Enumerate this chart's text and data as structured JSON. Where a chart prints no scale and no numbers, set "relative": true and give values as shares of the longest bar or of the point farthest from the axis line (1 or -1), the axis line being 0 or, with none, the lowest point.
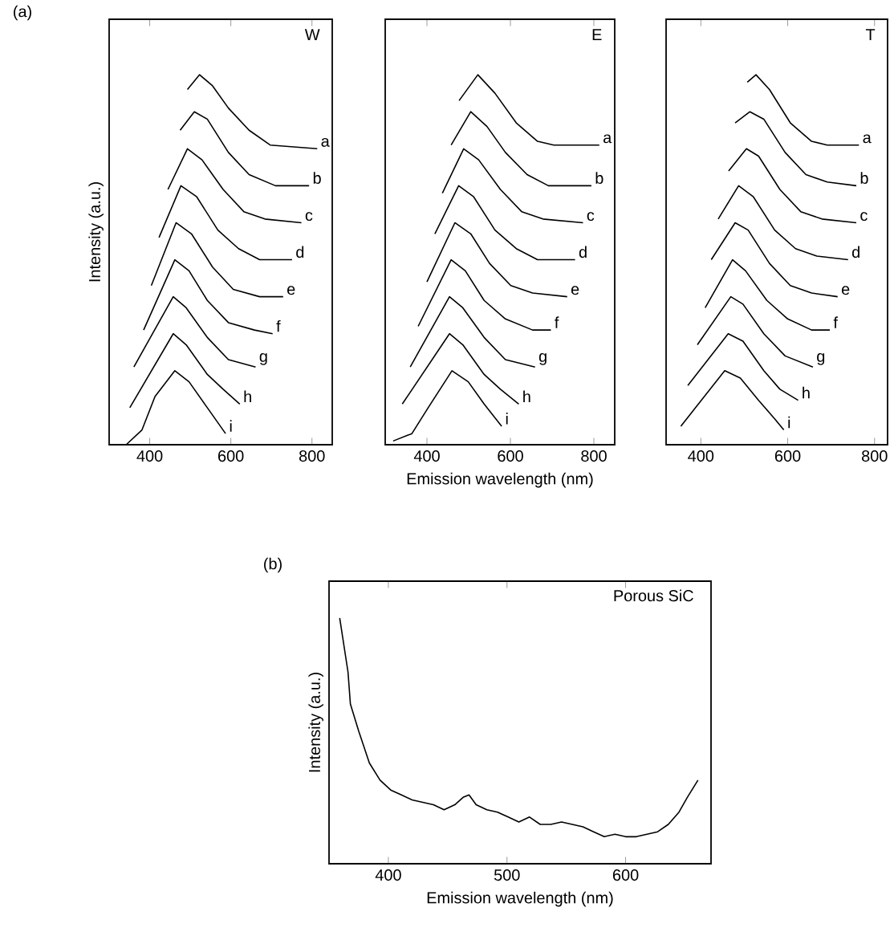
{
  "chart_data": [
    {
      "type": "line",
      "title": "W",
      "ylabel": "Intensity (a.u.)",
      "annotations": [
        "(a)"
      ],
      "relative": true,
      "xlim": [
        300,
        850
      ],
      "xticks": [
        400,
        600,
        800
      ],
      "series": [
        {
          "name": "a",
          "color": "#000000",
          "x": [
            493,
            523,
            555,
            594,
            645,
            697,
            813
          ],
          "values": [
            0.96,
            1.0,
            0.97,
            0.91,
            0.85,
            0.81,
            0.8
          ]
        },
        {
          "name": "b",
          "color": "#000000",
          "x": [
            475,
            510,
            542,
            594,
            645,
            710,
            793
          ],
          "values": [
            0.85,
            0.9,
            0.88,
            0.79,
            0.73,
            0.7,
            0.7
          ]
        },
        {
          "name": "c",
          "color": "#000000",
          "x": [
            445,
            493,
            529,
            581,
            632,
            684,
            774
          ],
          "values": [
            0.69,
            0.8,
            0.77,
            0.69,
            0.63,
            0.61,
            0.6
          ]
        },
        {
          "name": "d",
          "color": "#000000",
          "x": [
            423,
            477,
            516,
            568,
            619,
            671,
            751
          ],
          "values": [
            0.56,
            0.7,
            0.67,
            0.58,
            0.53,
            0.5,
            0.5
          ]
        },
        {
          "name": "e",
          "color": "#000000",
          "x": [
            404,
            465,
            503,
            555,
            606,
            671,
            729
          ],
          "values": [
            0.43,
            0.6,
            0.57,
            0.48,
            0.42,
            0.4,
            0.4
          ]
        },
        {
          "name": "f",
          "color": "#000000",
          "x": [
            385,
            462,
            497,
            542,
            594,
            658,
            703
          ],
          "values": [
            0.31,
            0.5,
            0.47,
            0.39,
            0.33,
            0.31,
            0.3
          ]
        },
        {
          "name": "g",
          "color": "#000000",
          "x": [
            361,
            458,
            490,
            542,
            594,
            661
          ],
          "values": [
            0.21,
            0.4,
            0.37,
            0.29,
            0.23,
            0.21
          ]
        },
        {
          "name": "h",
          "color": "#000000",
          "x": [
            351,
            458,
            490,
            542,
            581,
            622
          ],
          "values": [
            0.1,
            0.3,
            0.27,
            0.19,
            0.15,
            0.11
          ]
        },
        {
          "name": "i",
          "color": "#000000",
          "x": [
            342,
            381,
            413,
            462,
            497,
            542,
            587
          ],
          "values": [
            0.0,
            0.04,
            0.13,
            0.2,
            0.17,
            0.1,
            0.03
          ]
        }
      ]
    },
    {
      "type": "line",
      "title": "E",
      "xlabel": "Emission wavelength (nm)",
      "relative": true,
      "xlim": [
        300,
        850
      ],
      "xticks": [
        400,
        600,
        800
      ],
      "series": [
        {
          "name": "a",
          "color": "#000000",
          "x": [
            477,
            522,
            563,
            614,
            665,
            704,
            813
          ],
          "values": [
            0.93,
            1.0,
            0.95,
            0.87,
            0.82,
            0.81,
            0.81
          ]
        },
        {
          "name": "b",
          "color": "#000000",
          "x": [
            458,
            505,
            544,
            588,
            640,
            691,
            794
          ],
          "values": [
            0.81,
            0.9,
            0.86,
            0.79,
            0.73,
            0.7,
            0.7
          ]
        },
        {
          "name": "c",
          "color": "#000000",
          "x": [
            437,
            488,
            524,
            576,
            627,
            678,
            774
          ],
          "values": [
            0.68,
            0.8,
            0.77,
            0.69,
            0.63,
            0.61,
            0.6
          ]
        },
        {
          "name": "d",
          "color": "#000000",
          "x": [
            419,
            476,
            512,
            563,
            614,
            665,
            755
          ],
          "values": [
            0.57,
            0.7,
            0.67,
            0.58,
            0.53,
            0.5,
            0.5
          ]
        },
        {
          "name": "e",
          "color": "#000000",
          "x": [
            400,
            467,
            505,
            550,
            601,
            653,
            736
          ],
          "values": [
            0.44,
            0.6,
            0.57,
            0.49,
            0.43,
            0.41,
            0.4
          ]
        },
        {
          "name": "f",
          "color": "#000000",
          "x": [
            379,
            458,
            492,
            537,
            588,
            653,
            697
          ],
          "values": [
            0.32,
            0.5,
            0.47,
            0.39,
            0.34,
            0.31,
            0.31
          ]
        },
        {
          "name": "g",
          "color": "#000000",
          "x": [
            360,
            454,
            486,
            537,
            588,
            659
          ],
          "values": [
            0.21,
            0.4,
            0.37,
            0.29,
            0.23,
            0.21
          ]
        },
        {
          "name": "h",
          "color": "#000000",
          "x": [
            341,
            454,
            486,
            537,
            576,
            620
          ],
          "values": [
            0.11,
            0.3,
            0.27,
            0.19,
            0.15,
            0.11
          ]
        },
        {
          "name": "i",
          "color": "#000000",
          "x": [
            319,
            364,
            403,
            460,
            499,
            537,
            579
          ],
          "values": [
            0.01,
            0.03,
            0.1,
            0.2,
            0.17,
            0.11,
            0.05
          ]
        }
      ]
    },
    {
      "type": "line",
      "title": "T",
      "relative": true,
      "xlim": [
        320,
        830
      ],
      "xticks": [
        400,
        600,
        800
      ],
      "series": [
        {
          "name": "a",
          "color": "#000000",
          "x": [
            507,
            527,
            558,
            606,
            655,
            691,
            764
          ],
          "values": [
            0.98,
            1.0,
            0.96,
            0.87,
            0.82,
            0.81,
            0.81
          ]
        },
        {
          "name": "b",
          "color": "#000000",
          "x": [
            479,
            513,
            545,
            594,
            642,
            691,
            758
          ],
          "values": [
            0.87,
            0.9,
            0.88,
            0.79,
            0.73,
            0.71,
            0.7
          ]
        },
        {
          "name": "c",
          "color": "#000000",
          "x": [
            464,
            505,
            533,
            582,
            630,
            679,
            758
          ],
          "values": [
            0.74,
            0.8,
            0.78,
            0.69,
            0.63,
            0.61,
            0.6
          ]
        },
        {
          "name": "d",
          "color": "#000000",
          "x": [
            440,
            487,
            521,
            570,
            618,
            667,
            739
          ],
          "values": [
            0.61,
            0.7,
            0.67,
            0.58,
            0.53,
            0.51,
            0.5
          ]
        },
        {
          "name": "e",
          "color": "#000000",
          "x": [
            424,
            479,
            509,
            558,
            606,
            655,
            715
          ],
          "values": [
            0.5,
            0.6,
            0.58,
            0.49,
            0.43,
            0.41,
            0.4
          ]
        },
        {
          "name": "f",
          "color": "#000000",
          "x": [
            410,
            473,
            503,
            552,
            600,
            655,
            697
          ],
          "values": [
            0.37,
            0.5,
            0.47,
            0.39,
            0.34,
            0.31,
            0.31
          ]
        },
        {
          "name": "g",
          "color": "#000000",
          "x": [
            392,
            469,
            497,
            545,
            594,
            658
          ],
          "values": [
            0.27,
            0.4,
            0.38,
            0.3,
            0.24,
            0.21
          ]
        },
        {
          "name": "h",
          "color": "#000000",
          "x": [
            370,
            463,
            497,
            545,
            582,
            624
          ],
          "values": [
            0.16,
            0.3,
            0.28,
            0.2,
            0.15,
            0.12
          ]
        },
        {
          "name": "i",
          "color": "#000000",
          "x": [
            354,
            455,
            491,
            533,
            570,
            591
          ],
          "values": [
            0.05,
            0.2,
            0.18,
            0.12,
            0.07,
            0.04
          ]
        }
      ]
    },
    {
      "type": "line",
      "title": "Porous SiC",
      "xlabel": "Emission wavelength (nm)",
      "ylabel": "Intensity (a.u.)",
      "annotations": [
        "(b)"
      ],
      "relative": true,
      "xlim": [
        350,
        672
      ],
      "xticks": [
        400,
        500,
        600
      ],
      "series": [
        {
          "color": "#000000",
          "x": [
            359,
            366,
            368,
            375,
            384,
            393,
            402,
            411,
            420,
            429,
            438,
            447,
            456,
            463,
            468,
            474,
            483,
            492,
            501,
            510,
            519,
            528,
            537,
            546,
            555,
            564,
            573,
            582,
            591,
            600,
            609,
            618,
            627,
            636,
            645,
            652,
            661
          ],
          "values": [
            1.0,
            0.78,
            0.65,
            0.54,
            0.41,
            0.34,
            0.3,
            0.28,
            0.26,
            0.25,
            0.24,
            0.22,
            0.24,
            0.27,
            0.28,
            0.24,
            0.22,
            0.21,
            0.19,
            0.17,
            0.19,
            0.16,
            0.16,
            0.17,
            0.16,
            0.15,
            0.13,
            0.11,
            0.12,
            0.11,
            0.11,
            0.12,
            0.13,
            0.16,
            0.21,
            0.27,
            0.34
          ]
        }
      ]
    }
  ]
}
